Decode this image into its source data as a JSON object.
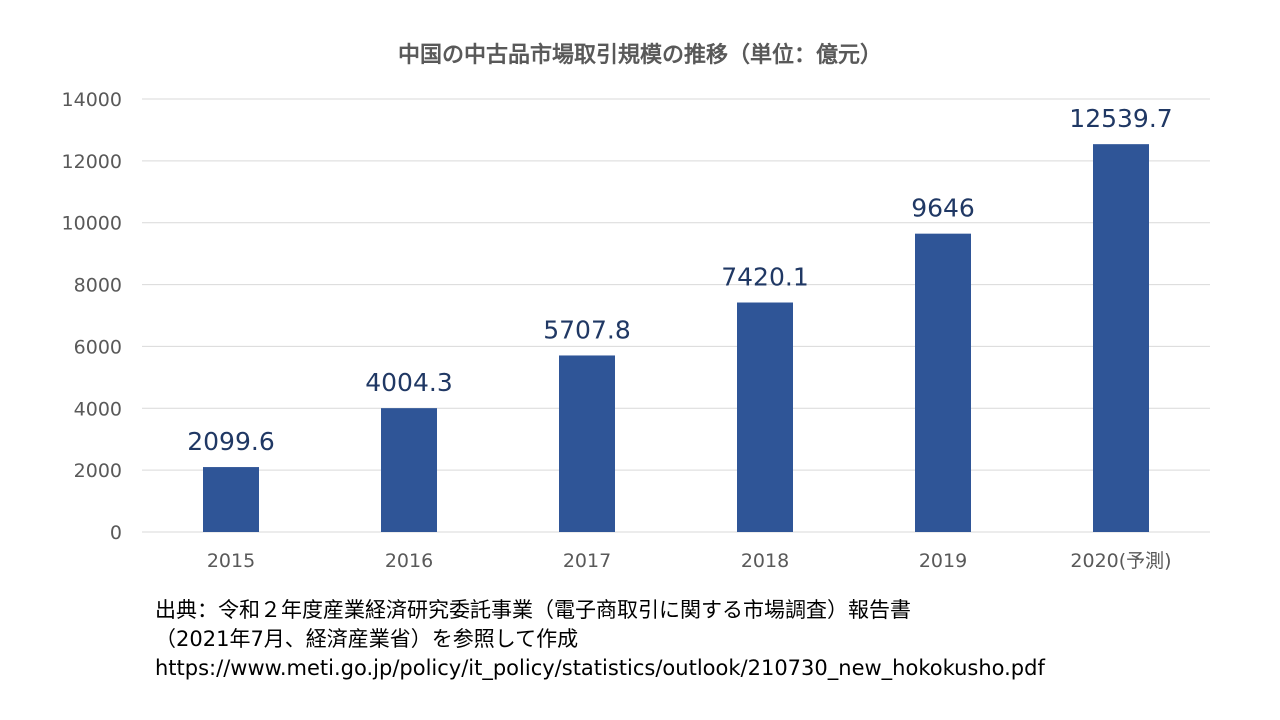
{
  "chart_data": {
    "type": "bar",
    "title": "中国の中古品市場取引規模の推移（単位：億元）",
    "categories": [
      "2015",
      "2016",
      "2017",
      "2018",
      "2019",
      "2020(予測)"
    ],
    "values": [
      2099.6,
      4004.3,
      5707.8,
      7420.1,
      9646,
      12539.7
    ],
    "data_labels": [
      "2099.6",
      "4004.3",
      "5707.8",
      "7420.1",
      "9646",
      "12539.7"
    ],
    "y_ticks": [
      "0",
      "2000",
      "4000",
      "6000",
      "8000",
      "10000",
      "12000",
      "14000"
    ],
    "ylim": [
      0,
      14000
    ],
    "grid": true,
    "legend": "none",
    "bar_color": "#2f5597",
    "label_color": "#203864"
  },
  "source": {
    "line1": "出典：令和２年度産業経済研究委託事業（電子商取引に関する市場調査）報告書",
    "line2": "（2021年7月、経済産業省）を参照して作成",
    "line3": "https://www.meti.go.jp/policy/it_policy/statistics/outlook/210730_new_hokokusho.pdf"
  }
}
